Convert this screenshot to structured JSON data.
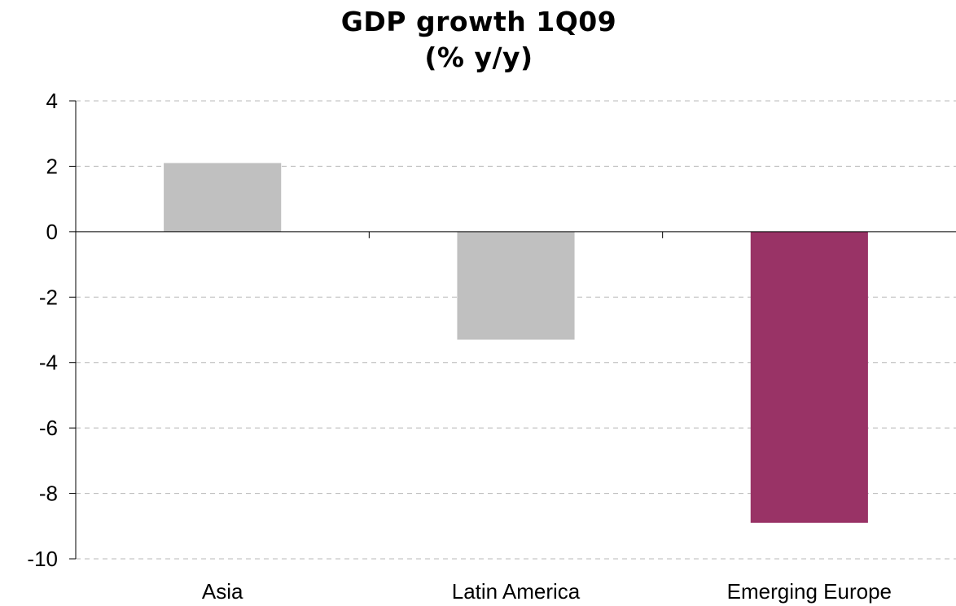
{
  "chart_data": {
    "type": "bar",
    "title_lines": [
      "GDP growth 1Q09",
      "(% y/y)"
    ],
    "categories": [
      "Asia",
      "Latin America",
      "Emerging Europe"
    ],
    "values": [
      2.1,
      -3.3,
      -8.9
    ],
    "bar_colors": [
      "#c0c0c0",
      "#c0c0c0",
      "#993366"
    ],
    "ylim": [
      -10,
      4
    ],
    "yticks": [
      4,
      2,
      0,
      -2,
      -4,
      -6,
      -8,
      -10
    ],
    "grid": true,
    "xlabel": "",
    "ylabel": ""
  }
}
